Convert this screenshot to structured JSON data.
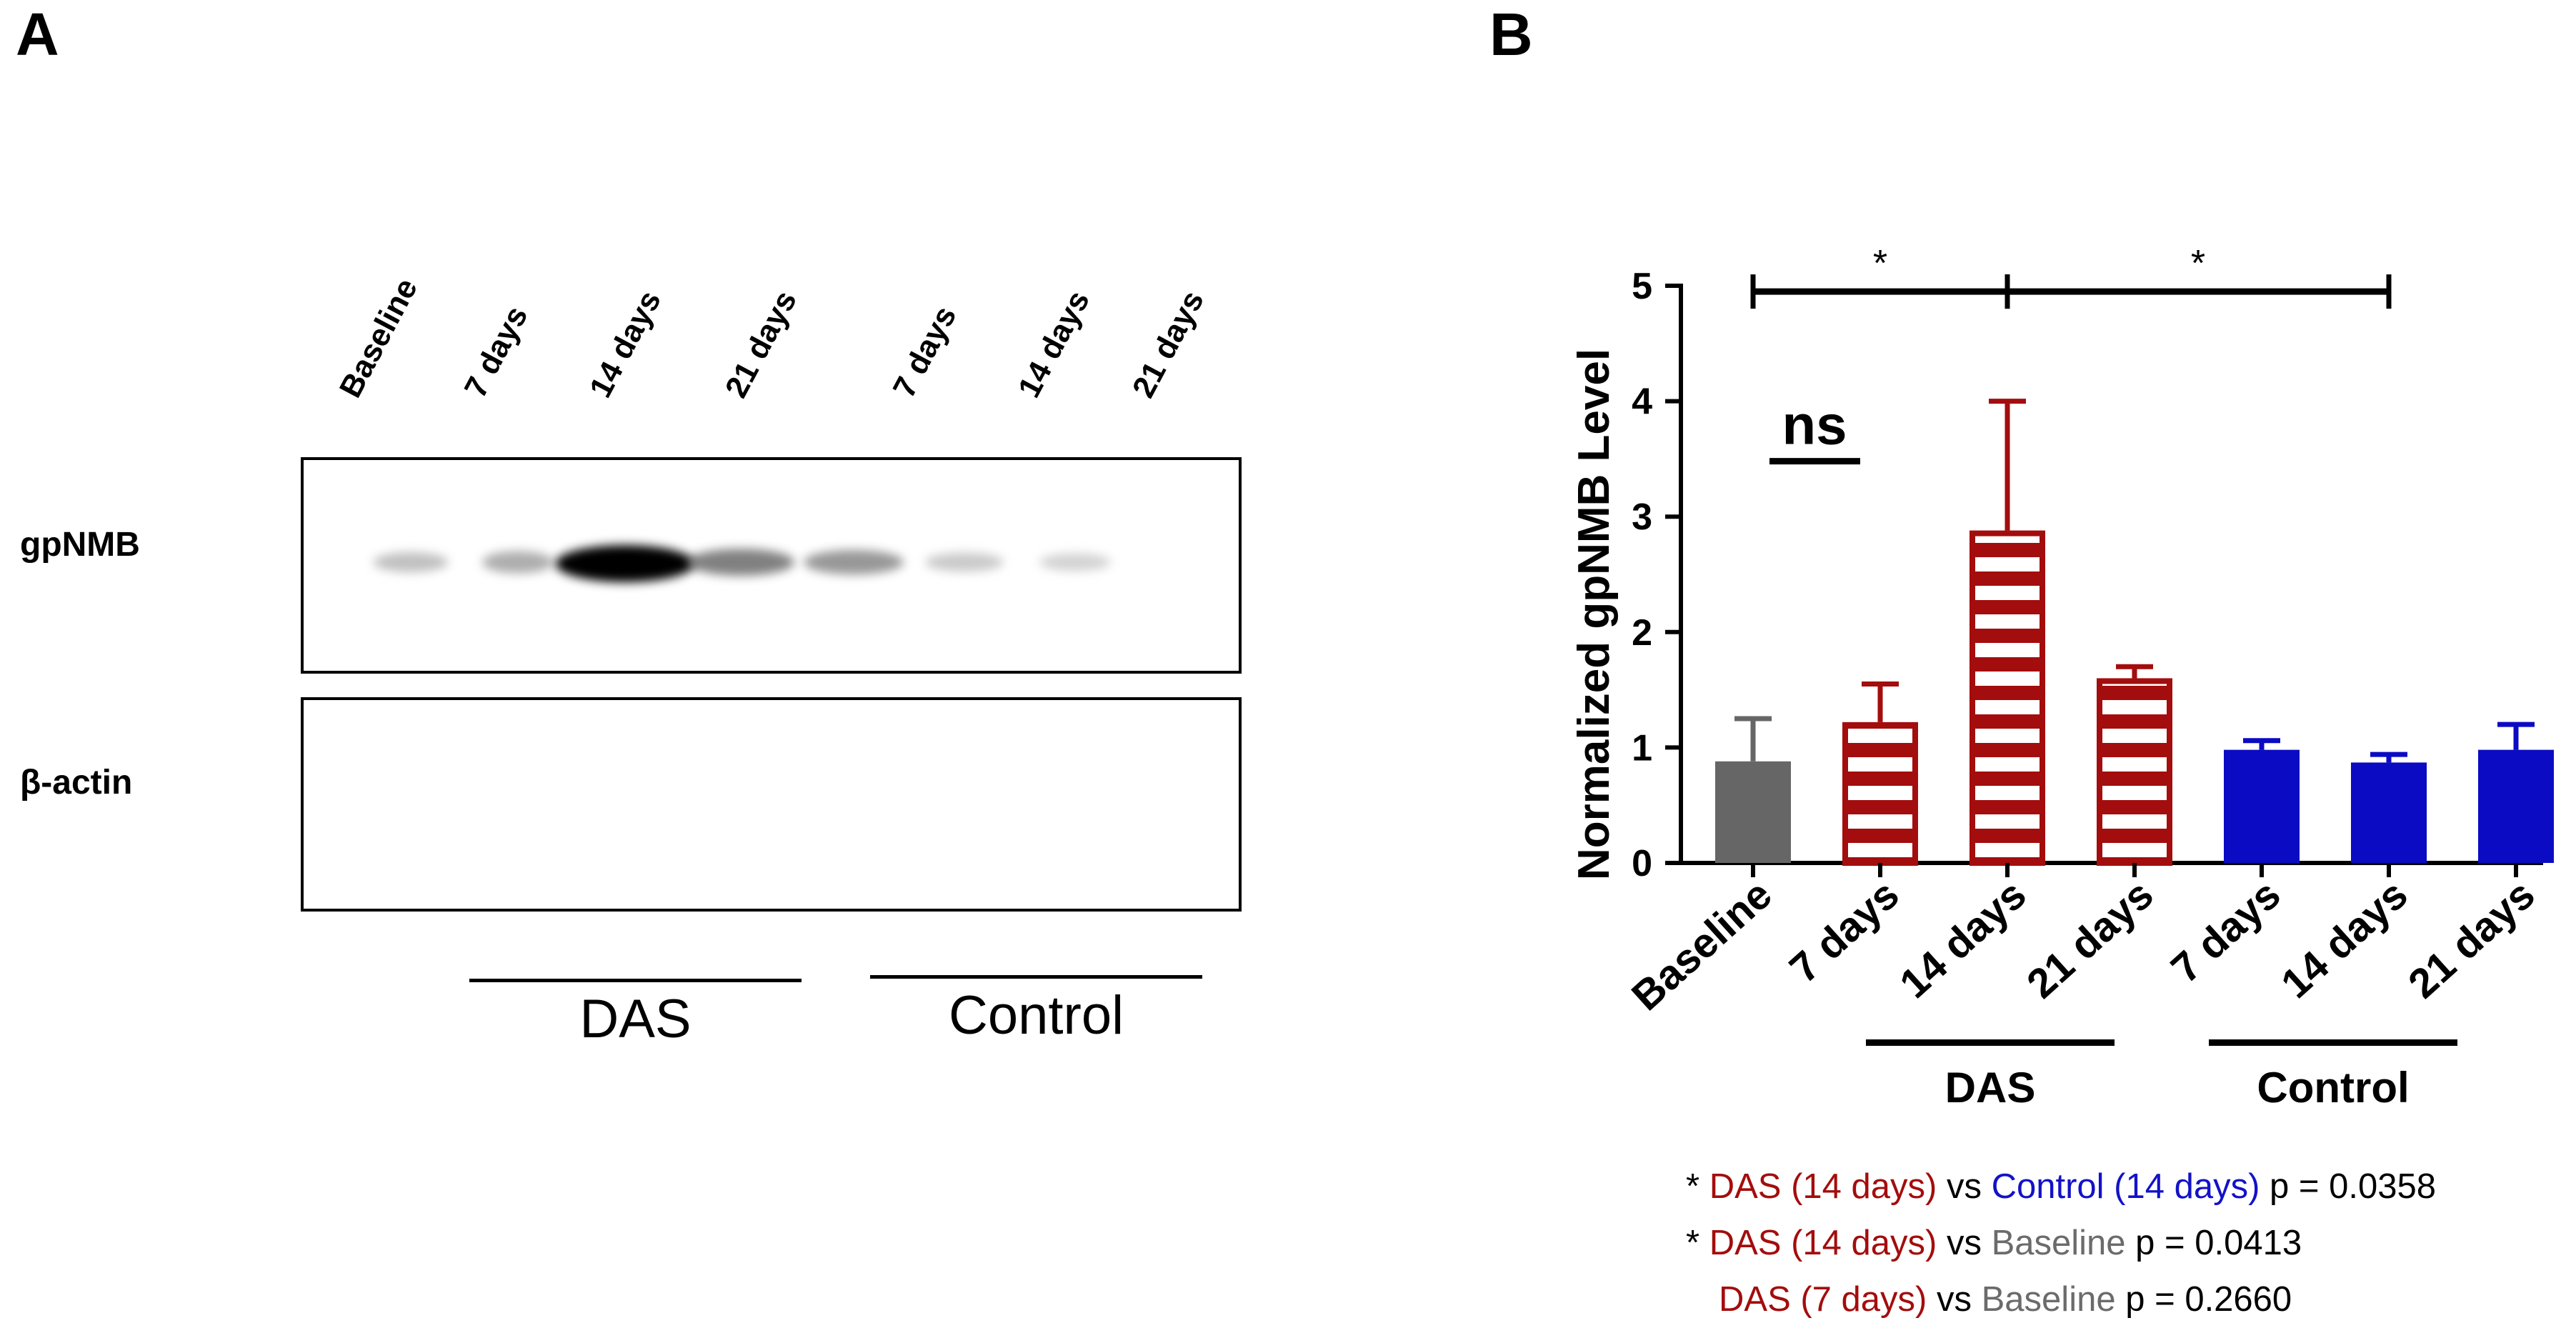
{
  "panels": {
    "a": "A",
    "b": "B"
  },
  "western_blot": {
    "lanes": [
      "Baseline",
      "7 days",
      "14 days",
      "21 days",
      "7 days",
      "14 days",
      "21 days"
    ],
    "rows": [
      "gpNMB",
      "β-actin"
    ],
    "band_intensity": [
      0.25,
      0.35,
      1.0,
      0.55,
      0.45,
      0.2,
      0.15
    ],
    "groups": [
      "DAS",
      "Control"
    ]
  },
  "chart_data": {
    "type": "bar",
    "ylabel": "Normalized gpNMB Level",
    "xlabel": "",
    "ylim": [
      0,
      5
    ],
    "yticks": [
      0,
      1,
      2,
      3,
      4,
      5
    ],
    "categories": [
      "Baseline",
      "7 days",
      "14 days",
      "21 days",
      "7 days",
      "14 days",
      "21 days"
    ],
    "values": [
      0.88,
      1.22,
      2.88,
      1.6,
      0.98,
      0.87,
      0.98
    ],
    "errors": [
      0.37,
      0.33,
      1.12,
      0.1,
      0.08,
      0.07,
      0.22
    ],
    "colors": [
      "#666666",
      "#a30d0d",
      "#a30d0d",
      "#a30d0d",
      "#0b0bc4",
      "#0b0bc4",
      "#0b0bc4"
    ],
    "fill_pattern": [
      "solid",
      "horizontal-stripes",
      "horizontal-stripes",
      "horizontal-stripes",
      "solid",
      "solid",
      "solid"
    ],
    "groups": [
      "DAS",
      "Control"
    ],
    "significance": [
      {
        "from": "Baseline",
        "to": "14 days (DAS)",
        "label": "*"
      },
      {
        "from": "14 days (DAS)",
        "to": "14 days (Control)",
        "label": "*"
      },
      {
        "from": "Baseline",
        "to": "7 days (DAS)",
        "label": "ns"
      }
    ],
    "grid": false,
    "legend": "none"
  },
  "stats_notes": [
    {
      "star": "*",
      "a": "DAS (14 days)",
      "vs": "vs",
      "b": "Control (14 days)",
      "p": "p = 0.0358"
    },
    {
      "star": "*",
      "a": "DAS (14 days)",
      "vs": "vs",
      "b": "Baseline",
      "p": "p = 0.0413"
    },
    {
      "star": "",
      "a": "DAS (7 days)",
      "vs": "vs",
      "b": "Baseline",
      "p": "p = 0.2660"
    }
  ],
  "colors": {
    "das": "#a30d0d",
    "control": "#1212c8",
    "baseline": "#6b6b6b"
  }
}
